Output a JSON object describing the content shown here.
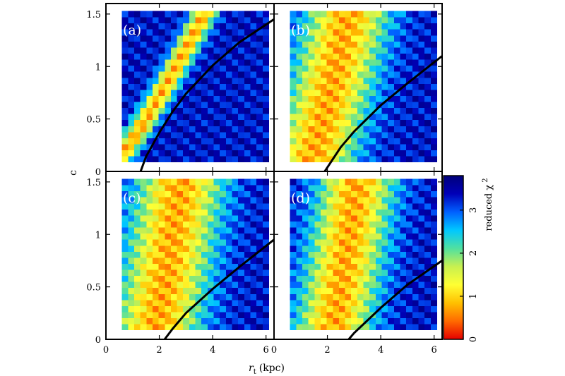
{
  "chart_data": {
    "type": "heatmap",
    "title": "",
    "xlabel": "r",
    "xlabel_subscript": "t",
    "xlabel_unit": "(kpc)",
    "ylabel": "c",
    "xlim": [
      0,
      6.3
    ],
    "ylim": [
      0,
      1.6
    ],
    "x_ticks": [
      "0",
      "2",
      "4",
      "6"
    ],
    "y_ticks": [
      "0",
      "0.5",
      "1",
      "1.5"
    ],
    "grid": false,
    "colorbar": {
      "label": "reduced χ",
      "label_superscript": "2",
      "range": [
        0,
        3.8
      ],
      "ticks": [
        "0",
        "1",
        "2",
        "3"
      ],
      "colors": [
        "#e60000",
        "#ff6a00",
        "#ffc000",
        "#ffff33",
        "#c8f050",
        "#50e0a0",
        "#00c8ff",
        "#0060ff",
        "#0000b8",
        "#00007a"
      ]
    },
    "panels": [
      {
        "label": "(a)",
        "grid": {
          "x_range": [
            0.6,
            6.1
          ],
          "y_range": [
            0.09,
            1.53
          ],
          "nx": 24,
          "ny": 25
        },
        "ridge": {
          "a": 0.08,
          "b": 0.85,
          "c": 0.34
        },
        "curve": [
          [
            1.3,
            0
          ],
          [
            1.5,
            0.14
          ],
          [
            2,
            0.37
          ],
          [
            2.5,
            0.57
          ],
          [
            3,
            0.74
          ],
          [
            4,
            1.01
          ],
          [
            5,
            1.23
          ],
          [
            6.3,
            1.45
          ]
        ]
      },
      {
        "label": "(b)",
        "grid": {
          "x_range": [
            0.6,
            6.1
          ],
          "y_range": [
            0.09,
            1.53
          ],
          "nx": 24,
          "ny": 25
        },
        "ridge": {
          "a": 1.25,
          "b": 0.36,
          "c": 1.1
        },
        "curve": [
          [
            1.9,
            0
          ],
          [
            2.5,
            0.23
          ],
          [
            3,
            0.38
          ],
          [
            4,
            0.63
          ],
          [
            5,
            0.84
          ],
          [
            6.3,
            1.1
          ]
        ]
      },
      {
        "label": "(c)",
        "grid": {
          "x_range": [
            0.6,
            6.1
          ],
          "y_range": [
            0.09,
            1.53
          ],
          "nx": 24,
          "ny": 25
        },
        "ridge": {
          "a": 1.75,
          "b": 0.25,
          "c": 1.15
        },
        "curve": [
          [
            2.2,
            0
          ],
          [
            2.5,
            0.1
          ],
          [
            3,
            0.25
          ],
          [
            4,
            0.48
          ],
          [
            5,
            0.69
          ],
          [
            6.3,
            0.95
          ]
        ]
      },
      {
        "label": "(d)",
        "grid": {
          "x_range": [
            0.6,
            6.1
          ],
          "y_range": [
            0.09,
            1.53
          ],
          "nx": 24,
          "ny": 25
        },
        "ridge": {
          "a": 2.1,
          "b": 0.24,
          "c": 1.0
        },
        "curve": [
          [
            2.8,
            0
          ],
          [
            3,
            0.06
          ],
          [
            4,
            0.3
          ],
          [
            5,
            0.52
          ],
          [
            6.3,
            0.75
          ]
        ]
      }
    ]
  }
}
